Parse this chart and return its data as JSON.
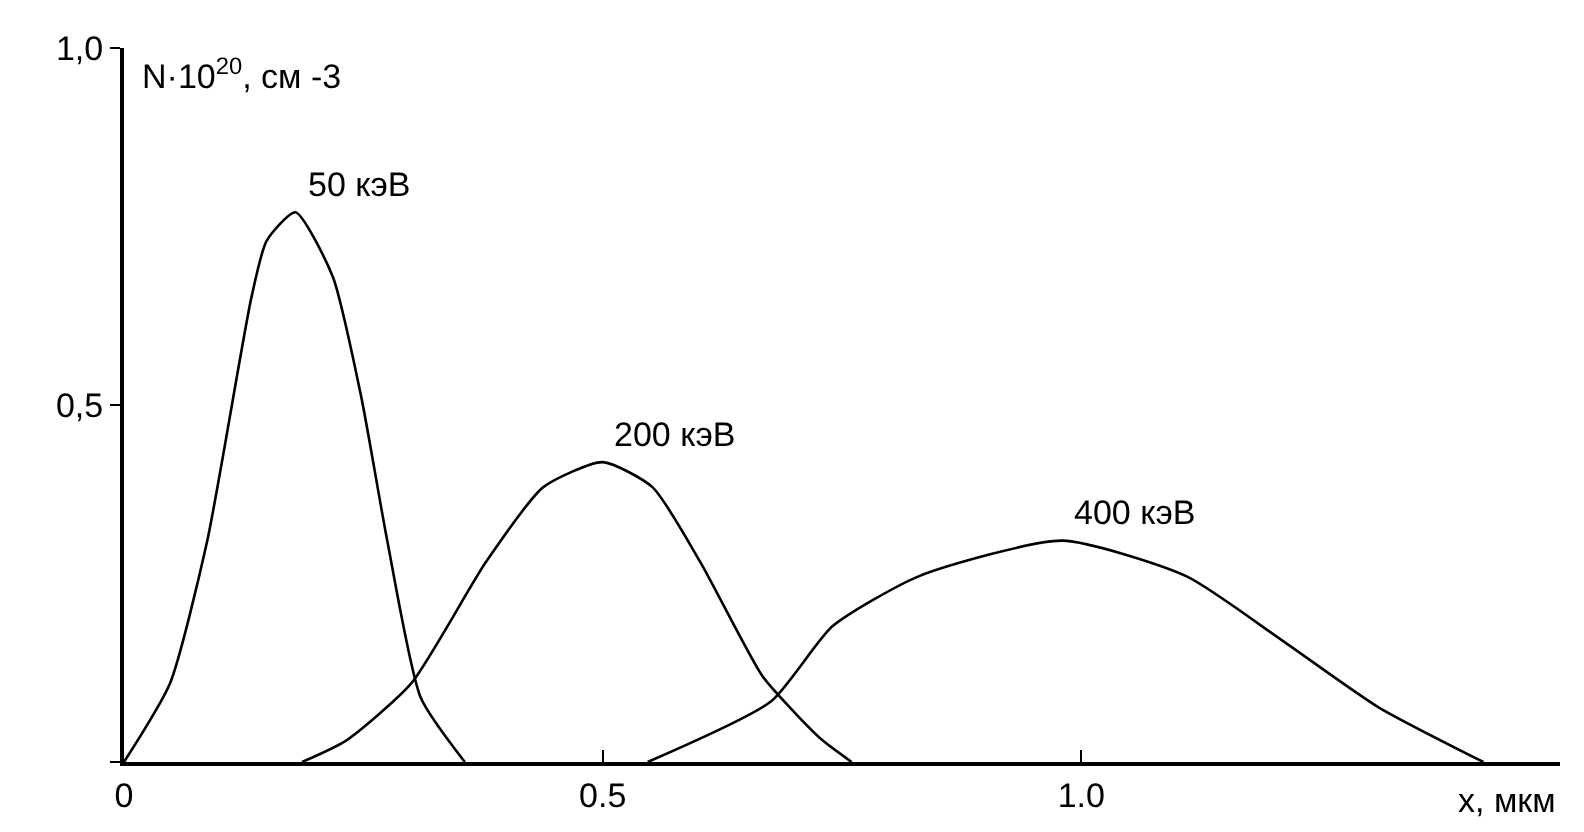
{
  "chart_data": {
    "type": "line",
    "xlabel": "x, мкм",
    "ylabel": "N·10$^{20}$, см -3",
    "xlim": [
      0,
      1.5
    ],
    "xticks": [
      0,
      {
        "value": 0.5,
        "label": "0.5"
      },
      {
        "value": 1,
        "label": "1.0"
      }
    ],
    "ylim": [
      0,
      1
    ],
    "yticks": [
      {
        "value": 0,
        "label": null
      },
      {
        "value": 0.5,
        "label": "0,5"
      },
      {
        "value": 1,
        "label": "1,0"
      }
    ],
    "grid": false,
    "legend": false,
    "marker": "none",
    "line_style": "solid",
    "series": [
      {
        "name": "50 кэВ",
        "color": "#000000",
        "x": [
          0,
          0.048,
          0.087,
          0.133,
          0.149,
          0.179,
          0.218,
          0.248,
          0.275,
          0.31,
          0.356
        ],
        "values": [
          0,
          0.11,
          0.31,
          0.65,
          0.73,
          0.77,
          0.68,
          0.51,
          0.31,
          0.09,
          0
        ]
      },
      {
        "name": "200 кэВ",
        "color": "#000000",
        "x": [
          0.186,
          0.232,
          0.3,
          0.378,
          0.438,
          0.5,
          0.552,
          0.602,
          0.667,
          0.7,
          0.73,
          0.76
        ],
        "values": [
          0,
          0.03,
          0.11,
          0.28,
          0.385,
          0.42,
          0.385,
          0.28,
          0.12,
          0.07,
          0.03,
          0
        ]
      },
      {
        "name": "400 кэВ",
        "color": "#000000",
        "x": [
          0.547,
          0.676,
          0.74,
          0.83,
          0.98,
          1.11,
          1.21,
          1.31,
          1.42
        ],
        "values": [
          0,
          0.085,
          0.19,
          0.26,
          0.31,
          0.26,
          0.17,
          0.077,
          0
        ]
      }
    ]
  }
}
